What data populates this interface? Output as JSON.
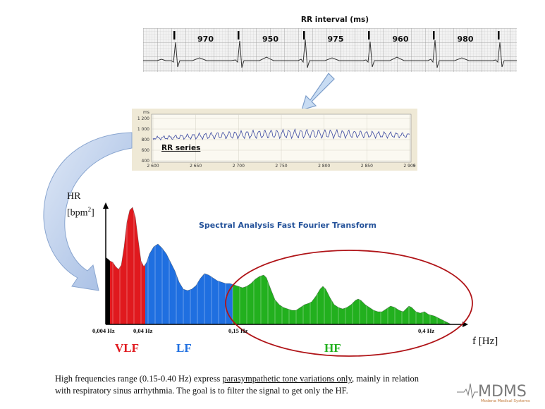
{
  "ecg": {
    "title": "RR interval (ms)",
    "intervals": [
      "970",
      "950",
      "975",
      "960",
      "980"
    ]
  },
  "rr_panel": {
    "y_unit": "ms",
    "y_ticks": [
      "1 200",
      "1 000",
      "800",
      "600",
      "400"
    ],
    "x_ticks": [
      "2 600",
      "2 650",
      "2 700",
      "2 750",
      "2 800",
      "2 850",
      "2 900"
    ],
    "x_unit": "s",
    "label": "RR series"
  },
  "spectrum": {
    "title": "Spectral Analysis Fast Fourier Transform",
    "y_label_line1": "HR",
    "y_label_line2": "[bpm",
    "y_label_sup": "2",
    "y_label_close": "]",
    "x_label": "f  [Hz]",
    "ticks": [
      "0,004 Hz",
      "0,04 Hz",
      "0,15 Hz",
      "0,4 Hz"
    ],
    "bands": [
      {
        "name": "VLF",
        "color": "#e0191e"
      },
      {
        "name": "LF",
        "color": "#1f6fe0"
      },
      {
        "name": "HF",
        "color": "#22b01e"
      }
    ],
    "vlf_base_color": "#000000",
    "highlight_color": "#b01418"
  },
  "caption": {
    "line1a": "High frequencies range (0.15-0.40 Hz) express ",
    "line1b": "parasympathetic tone variations only",
    "line1c": ", mainly in relation",
    "line2": "with respiratory sinus arrhythmia.  The goal is to filter the signal to get only the HF."
  },
  "logo": {
    "text": "MDMS",
    "subtitle": "Modena Medical Systems"
  }
}
